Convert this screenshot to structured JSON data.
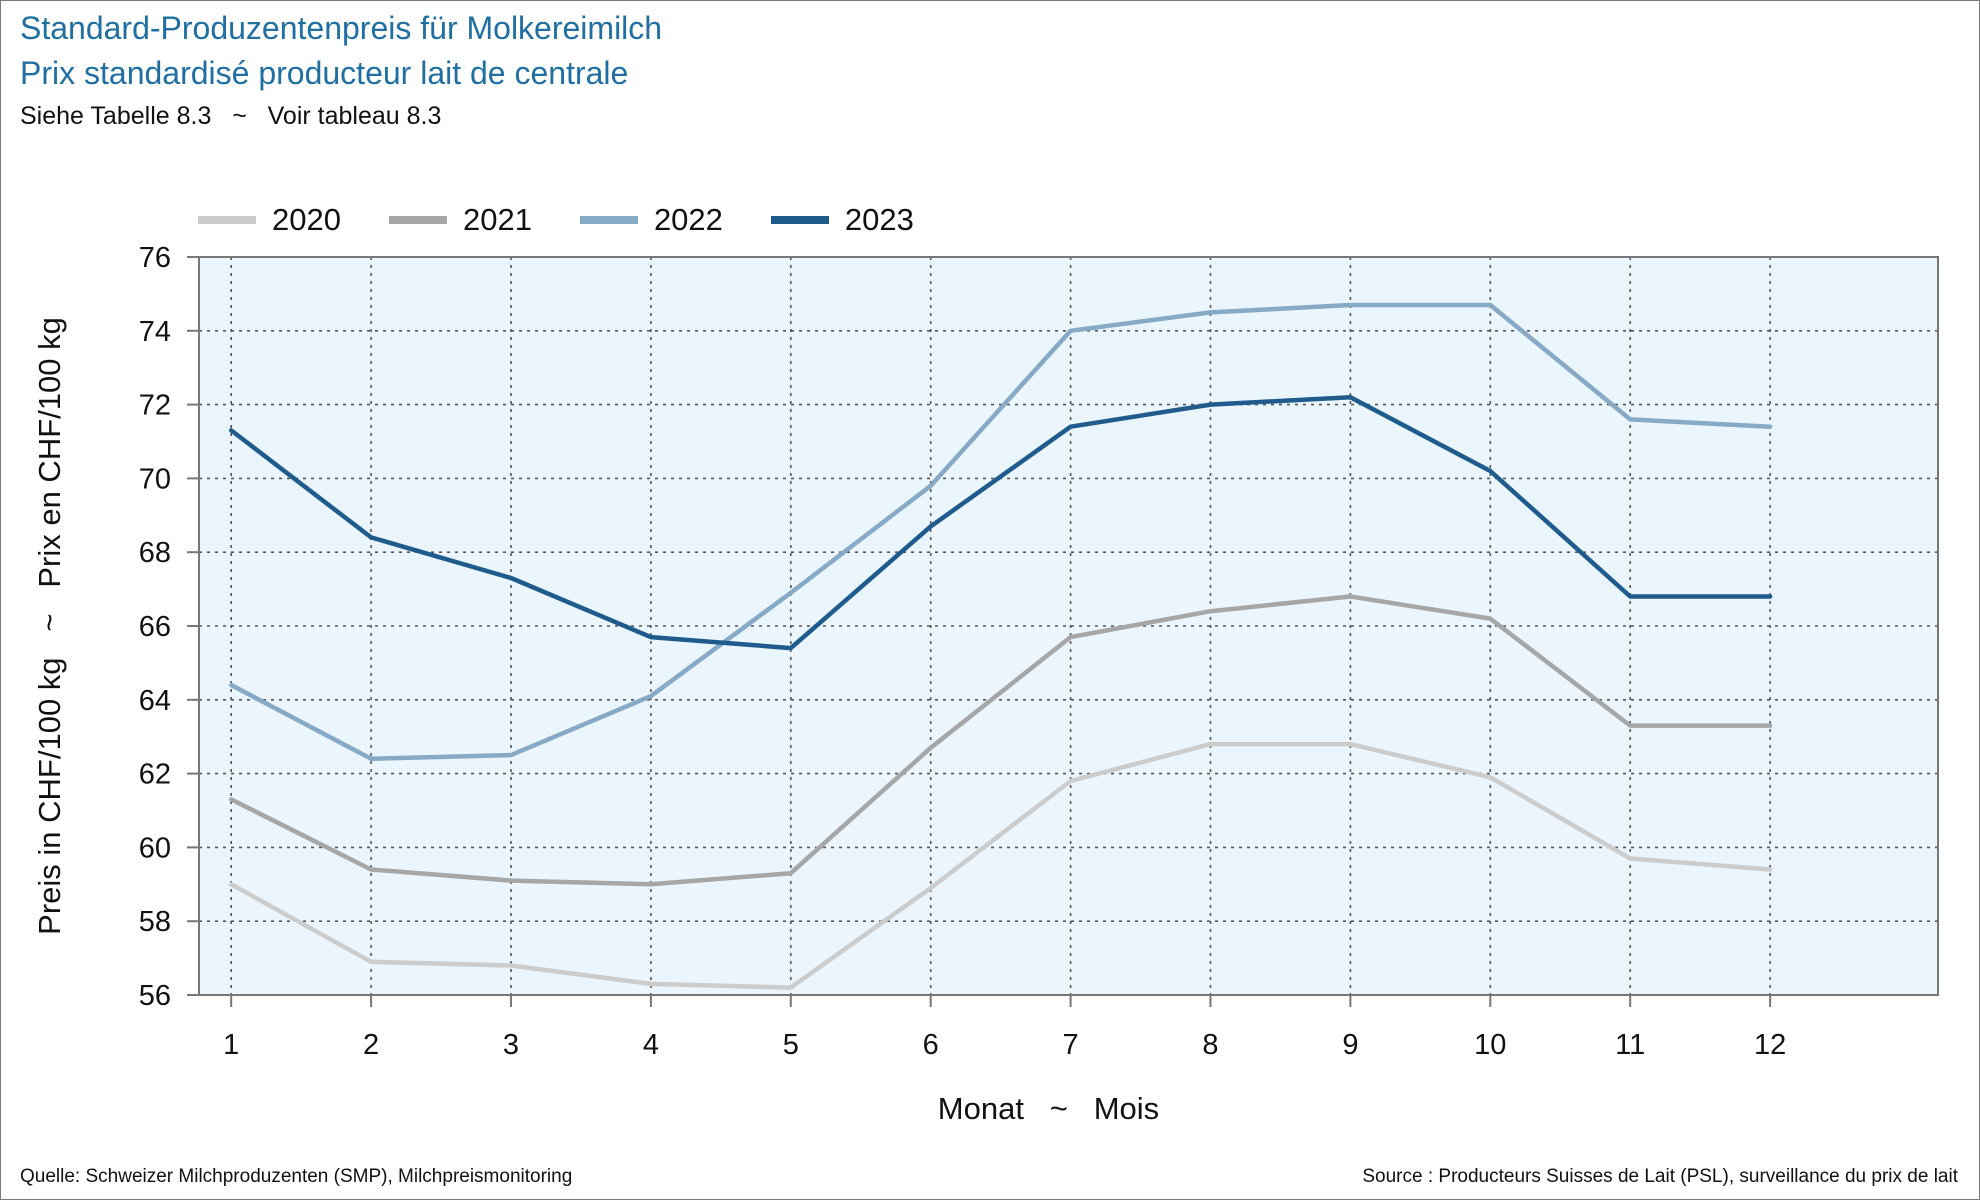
{
  "header": {
    "title_de": "Standard-Produzentenpreis für Molkereimilch",
    "title_fr": "Prix standardisé producteur lait de centrale",
    "subtitle": "Siehe Tabelle 8.3   ~   Voir tableau 8.3"
  },
  "footer": {
    "source_de": "Quelle: Schweizer Milchproduzenten (SMP), Milchpreismonitoring",
    "source_fr": "Source : Producteurs Suisses de Lait (PSL), surveillance du prix de lait"
  },
  "chart_data": {
    "type": "line",
    "title": "Standard-Produzentenpreis für Molkereimilch / Prix standardisé producteur lait de centrale",
    "xlabel": "Monat   ~   Mois",
    "ylabel": "Preis in CHF/100 kg   ~   Prix en CHF/100 kg",
    "x": [
      1,
      2,
      3,
      4,
      5,
      6,
      7,
      8,
      9,
      10,
      11,
      12
    ],
    "xlim": [
      0.77,
      13.2
    ],
    "ylim": [
      56,
      76
    ],
    "yticks": [
      56,
      58,
      60,
      62,
      64,
      66,
      68,
      70,
      72,
      74,
      76
    ],
    "grid": true,
    "legend_position": "top-left",
    "colors": {
      "plot_background": "#eaf5fd",
      "axis": "#777777",
      "grid": "#555555",
      "title": "#1f6fa3"
    },
    "series": [
      {
        "name": "2020",
        "color": "#cccccc",
        "values": [
          59.0,
          56.9,
          56.8,
          56.3,
          56.2,
          58.9,
          61.8,
          62.8,
          62.8,
          61.9,
          59.7,
          59.4
        ]
      },
      {
        "name": "2021",
        "color": "#a6a6a6",
        "values": [
          61.3,
          59.4,
          59.1,
          59.0,
          59.3,
          62.7,
          65.7,
          66.4,
          66.8,
          66.2,
          63.3,
          63.3
        ]
      },
      {
        "name": "2022",
        "color": "#86a9c6",
        "values": [
          64.4,
          62.4,
          62.5,
          64.1,
          66.9,
          69.8,
          74.0,
          74.5,
          74.7,
          74.7,
          71.6,
          71.4
        ]
      },
      {
        "name": "2023",
        "color": "#1f5b8c",
        "values": [
          71.3,
          68.4,
          67.3,
          65.7,
          65.4,
          68.7,
          71.4,
          72.0,
          72.2,
          70.2,
          66.8,
          66.8
        ]
      }
    ]
  }
}
